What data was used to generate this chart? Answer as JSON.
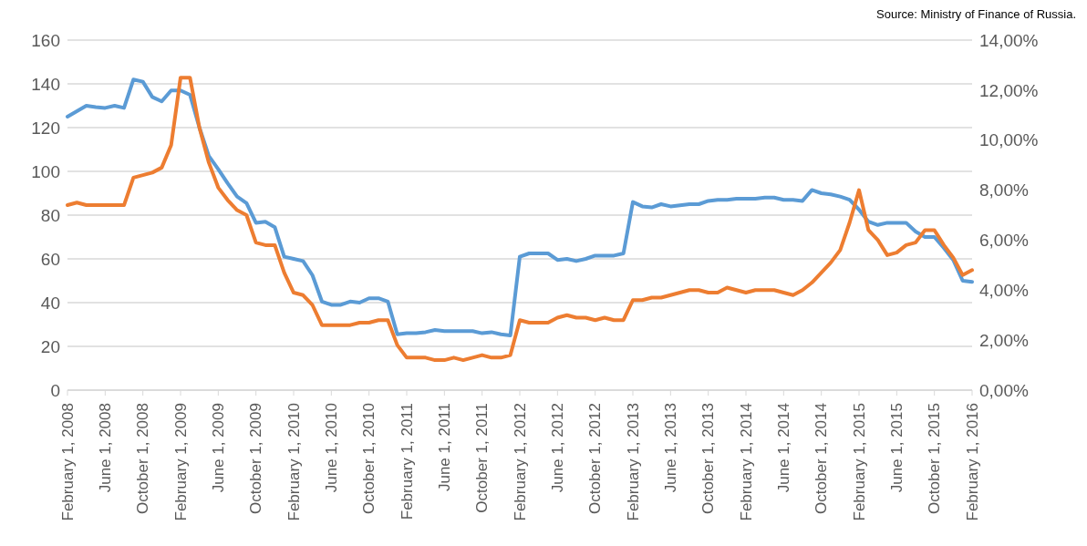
{
  "chart_data": {
    "type": "line",
    "annotations": [
      "Source: Ministry of Finance of Russia."
    ],
    "categories": [
      "February 1, 2008",
      null,
      null,
      null,
      "June 1, 2008",
      null,
      null,
      null,
      "October 1, 2008",
      null,
      null,
      null,
      "February 1, 2009",
      null,
      null,
      null,
      "June 1, 2009",
      null,
      null,
      null,
      "October 1, 2009",
      null,
      null,
      null,
      "February 1, 2010",
      null,
      null,
      null,
      "June 1, 2010",
      null,
      null,
      null,
      "October 1, 2010",
      null,
      null,
      null,
      "February 1, 2011",
      null,
      null,
      null,
      "June 1, 2011",
      null,
      null,
      null,
      "October 1, 2011",
      null,
      null,
      null,
      "February 1, 2012",
      null,
      null,
      null,
      "June 1, 2012",
      null,
      null,
      null,
      "October 1, 2012",
      null,
      null,
      null,
      "February 1, 2013",
      null,
      null,
      null,
      "June 1, 2013",
      null,
      null,
      null,
      "October 1, 2013",
      null,
      null,
      null,
      "February 1, 2014",
      null,
      null,
      null,
      "June 1, 2014",
      null,
      null,
      null,
      "October 1, 2014",
      null,
      null,
      null,
      "February 1, 2015",
      null,
      null,
      null,
      "June 1, 2015",
      null,
      null,
      null,
      "October 1, 2015",
      null,
      null,
      null,
      "February 1, 2016"
    ],
    "series": [
      {
        "color": "#5b9bd5",
        "values": [
          125,
          127.5,
          130,
          129.4,
          129,
          130,
          129,
          142,
          141,
          134,
          132,
          137,
          137,
          135,
          120,
          107,
          101,
          94.5,
          88.5,
          85.5,
          76.5,
          77,
          74.5,
          61,
          60,
          59,
          52.5,
          40.5,
          39,
          39,
          40.5,
          40,
          42,
          42,
          40.5,
          25.5,
          26,
          26,
          26.5,
          27.5,
          27,
          27,
          27,
          27,
          26,
          26.5,
          25.5,
          25,
          61,
          62.5,
          62.5,
          62.5,
          59.5,
          60,
          59,
          60,
          61.5,
          61.5,
          61.5,
          62.5,
          86,
          84,
          83.5,
          85,
          84,
          84.5,
          85,
          85,
          86.5,
          87,
          87,
          87.5,
          87.5,
          87.5,
          88,
          88,
          87,
          87,
          86.5,
          91.5,
          90,
          89.5,
          88.5,
          87,
          82.5,
          77,
          75.5,
          76.5,
          76.5,
          76.5,
          72.5,
          70,
          70,
          65,
          59.5,
          50,
          49.5
        ]
      },
      {
        "color": "#ed7d31",
        "axis": "y2",
        "values": [
          7.4,
          7.5,
          7.4,
          7.4,
          7.4,
          7.4,
          7.4,
          8.5,
          8.6,
          8.7,
          8.9,
          9.8,
          12.5,
          12.5,
          10.5,
          9.1,
          8.1,
          7.6,
          7.2,
          7,
          5.9,
          5.8,
          5.8,
          4.7,
          3.9,
          3.8,
          3.4,
          2.6,
          2.6,
          2.6,
          2.6,
          2.7,
          2.7,
          2.8,
          2.8,
          1.8,
          1.3,
          1.3,
          1.3,
          1.2,
          1.2,
          1.3,
          1.2,
          1.3,
          1.4,
          1.3,
          1.3,
          1.4,
          2.8,
          2.7,
          2.7,
          2.7,
          2.9,
          3,
          2.9,
          2.9,
          2.8,
          2.9,
          2.8,
          2.8,
          3.6,
          3.6,
          3.7,
          3.7,
          3.8,
          3.9,
          4,
          4,
          3.9,
          3.9,
          4.1,
          4,
          3.9,
          4,
          4,
          4,
          3.9,
          3.8,
          4,
          4.3,
          4.7,
          5.1,
          5.6,
          6.7,
          8,
          6.4,
          6,
          5.4,
          5.5,
          5.8,
          5.9,
          6.4,
          6.4,
          5.8,
          5.3,
          4.6,
          4.8
        ]
      }
    ],
    "ylim": [
      0,
      160
    ],
    "yticks": [
      0,
      20,
      40,
      60,
      80,
      100,
      120,
      140,
      160
    ],
    "y2lim": [
      0,
      14
    ],
    "y2ticks": [
      {
        "value": 0,
        "label": "0,00%"
      },
      {
        "value": 2,
        "label": "2,00%"
      },
      {
        "value": 4,
        "label": "4,00%"
      },
      {
        "value": 6,
        "label": "6,00%"
      },
      {
        "value": 8,
        "label": "8,00%"
      },
      {
        "value": 10,
        "label": "10,00%"
      },
      {
        "value": 12,
        "label": "12,00%"
      },
      {
        "value": 14,
        "label": "14,00%"
      }
    ],
    "grid": "y",
    "legend": false,
    "marker": "none",
    "line_style": "solid"
  }
}
